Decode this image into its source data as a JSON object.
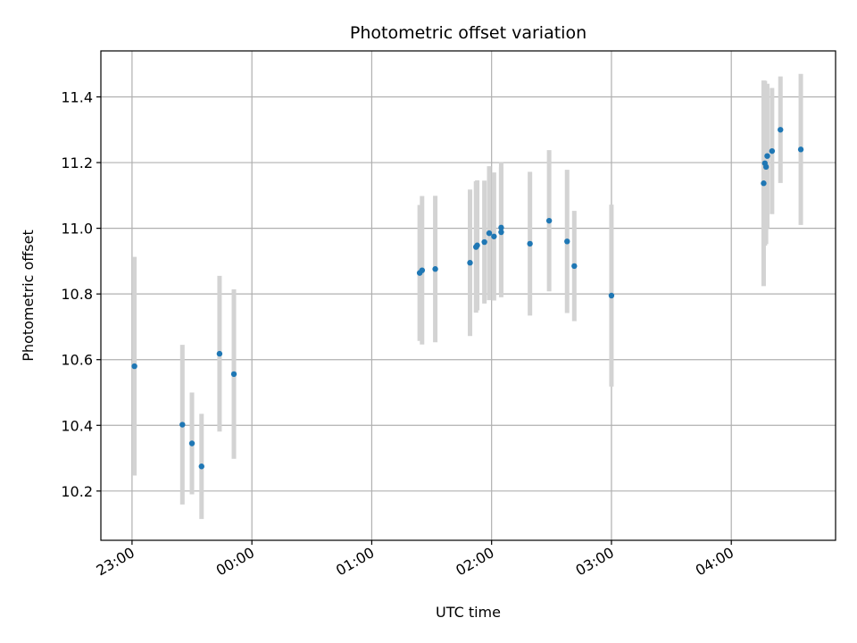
{
  "chart_data": {
    "type": "scatter",
    "title": "Photometric offset variation",
    "xlabel": "UTC time",
    "ylabel": "Photometric offset",
    "x_unit": "hours since 23:00",
    "xlim": [
      -0.26,
      5.87
    ],
    "ylim": [
      10.05,
      11.54
    ],
    "x_ticks": [
      {
        "value": 0,
        "label": "23:00"
      },
      {
        "value": 1,
        "label": "00:00"
      },
      {
        "value": 2,
        "label": "01:00"
      },
      {
        "value": 3,
        "label": "02:00"
      },
      {
        "value": 4,
        "label": "03:00"
      },
      {
        "value": 5,
        "label": "04:00"
      }
    ],
    "y_ticks": [
      {
        "value": 10.2,
        "label": "10.2"
      },
      {
        "value": 10.4,
        "label": "10.4"
      },
      {
        "value": 10.6,
        "label": "10.6"
      },
      {
        "value": 10.8,
        "label": "10.8"
      },
      {
        "value": 11.0,
        "label": "11.0"
      },
      {
        "value": 11.2,
        "label": "11.2"
      },
      {
        "value": 11.4,
        "label": "11.4"
      }
    ],
    "grid": true,
    "marker_color": "#1f77b4",
    "errorbar_color": "#d3d3d3",
    "series": [
      {
        "name": "Photometric offset",
        "points": [
          {
            "x": 0.02,
            "y": 10.58,
            "err": 0.333
          },
          {
            "x": 0.42,
            "y": 10.402,
            "err": 0.243
          },
          {
            "x": 0.5,
            "y": 10.345,
            "err": 0.155
          },
          {
            "x": 0.58,
            "y": 10.275,
            "err": 0.16
          },
          {
            "x": 0.73,
            "y": 10.618,
            "err": 0.237
          },
          {
            "x": 0.85,
            "y": 10.556,
            "err": 0.258
          },
          {
            "x": 2.4,
            "y": 10.864,
            "err": 0.207
          },
          {
            "x": 2.42,
            "y": 10.872,
            "err": 0.226
          },
          {
            "x": 2.53,
            "y": 10.876,
            "err": 0.223
          },
          {
            "x": 2.82,
            "y": 10.895,
            "err": 0.223
          },
          {
            "x": 2.87,
            "y": 10.943,
            "err": 0.2
          },
          {
            "x": 2.88,
            "y": 10.948,
            "err": 0.198
          },
          {
            "x": 2.94,
            "y": 10.958,
            "err": 0.187
          },
          {
            "x": 2.98,
            "y": 10.985,
            "err": 0.204
          },
          {
            "x": 3.02,
            "y": 10.975,
            "err": 0.195
          },
          {
            "x": 3.08,
            "y": 10.988,
            "err": 0.198
          },
          {
            "x": 3.08,
            "y": 11.002,
            "err": 0.2
          },
          {
            "x": 3.32,
            "y": 10.953,
            "err": 0.219
          },
          {
            "x": 3.48,
            "y": 11.023,
            "err": 0.215
          },
          {
            "x": 3.63,
            "y": 10.96,
            "err": 0.218
          },
          {
            "x": 3.69,
            "y": 10.885,
            "err": 0.168
          },
          {
            "x": 4.0,
            "y": 10.795,
            "err": 0.277
          },
          {
            "x": 5.27,
            "y": 11.137,
            "err": 0.313
          },
          {
            "x": 5.28,
            "y": 11.198,
            "err": 0.251
          },
          {
            "x": 5.29,
            "y": 11.187,
            "err": 0.235
          },
          {
            "x": 5.3,
            "y": 11.22,
            "err": 0.22
          },
          {
            "x": 5.34,
            "y": 11.235,
            "err": 0.192
          },
          {
            "x": 5.41,
            "y": 11.3,
            "err": 0.162
          },
          {
            "x": 5.58,
            "y": 11.24,
            "err": 0.23
          }
        ]
      }
    ]
  }
}
